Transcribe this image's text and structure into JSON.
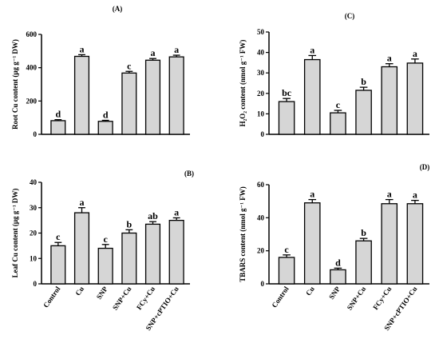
{
  "chart_data": [
    {
      "type": "bar",
      "panel": "(A)",
      "ylabel": "Root Cu content (μg g⁻¹ DW)",
      "categories": [
        "Control",
        "Cu",
        "SNP",
        "SNP+Cu",
        "FCy+Cu",
        "SNP+cPTIO+Cu"
      ],
      "values": [
        82,
        468,
        78,
        368,
        445,
        465
      ],
      "errors": [
        6,
        10,
        6,
        10,
        10,
        10
      ],
      "letters": [
        "d",
        "a",
        "d",
        "c",
        "a",
        "a"
      ],
      "ylim": [
        0,
        600
      ],
      "yticks": [
        "0",
        "200",
        "400",
        "600"
      ],
      "show_x_labels": false
    },
    {
      "type": "bar",
      "panel": "(C)",
      "ylabel": "H₂O₂ content (nmol g⁻¹ FW)",
      "categories": [
        "Control",
        "Cu",
        "SNP",
        "SNP+Cu",
        "FCy+Cu",
        "SNP+cPTIO+Cu"
      ],
      "values": [
        16,
        36.5,
        10.5,
        21.5,
        33,
        34.8
      ],
      "errors": [
        1.5,
        2,
        1.2,
        1.5,
        1.5,
        2
      ],
      "letters": [
        "bc",
        "a",
        "c",
        "b",
        "a",
        "a"
      ],
      "ylim": [
        0,
        50
      ],
      "yticks": [
        "0",
        "10",
        "20",
        "30",
        "40",
        "50"
      ],
      "show_x_labels": false
    },
    {
      "type": "bar",
      "panel": "(B)",
      "ylabel": "Leaf Cu content (μg g⁻¹ DW)",
      "categories": [
        "Control",
        "Cu",
        "SNP",
        "SNP+Cu",
        "FCy+Cu",
        "SNP+cPTIO+Cu"
      ],
      "values": [
        15,
        28,
        14,
        20,
        23.5,
        25
      ],
      "errors": [
        1.3,
        2,
        1.5,
        1.3,
        1,
        1
      ],
      "letters": [
        "c",
        "a",
        "c",
        "b",
        "ab",
        "a"
      ],
      "ylim": [
        0,
        40
      ],
      "yticks": [
        "0",
        "10",
        "20",
        "30",
        "40"
      ],
      "show_x_labels": true
    },
    {
      "type": "bar",
      "panel": "(D)",
      "ylabel": "TBARS content (nmol g⁻¹ FW)",
      "categories": [
        "Control",
        "Cu",
        "SNP",
        "SNP+Cu",
        "FCy+Cu",
        "SNP+cPTIO+Cu"
      ],
      "values": [
        16,
        49,
        8.5,
        26,
        48.5,
        48.5
      ],
      "errors": [
        1.5,
        2,
        1,
        1.5,
        2.5,
        2
      ],
      "letters": [
        "c",
        "a",
        "d",
        "b",
        "a",
        "a"
      ],
      "ylim": [
        0,
        60
      ],
      "yticks": [
        "0",
        "20",
        "40",
        "60"
      ],
      "show_x_labels": true
    }
  ],
  "colors": {
    "bar_fill": "#d6d6d6",
    "stroke": "#000000"
  }
}
